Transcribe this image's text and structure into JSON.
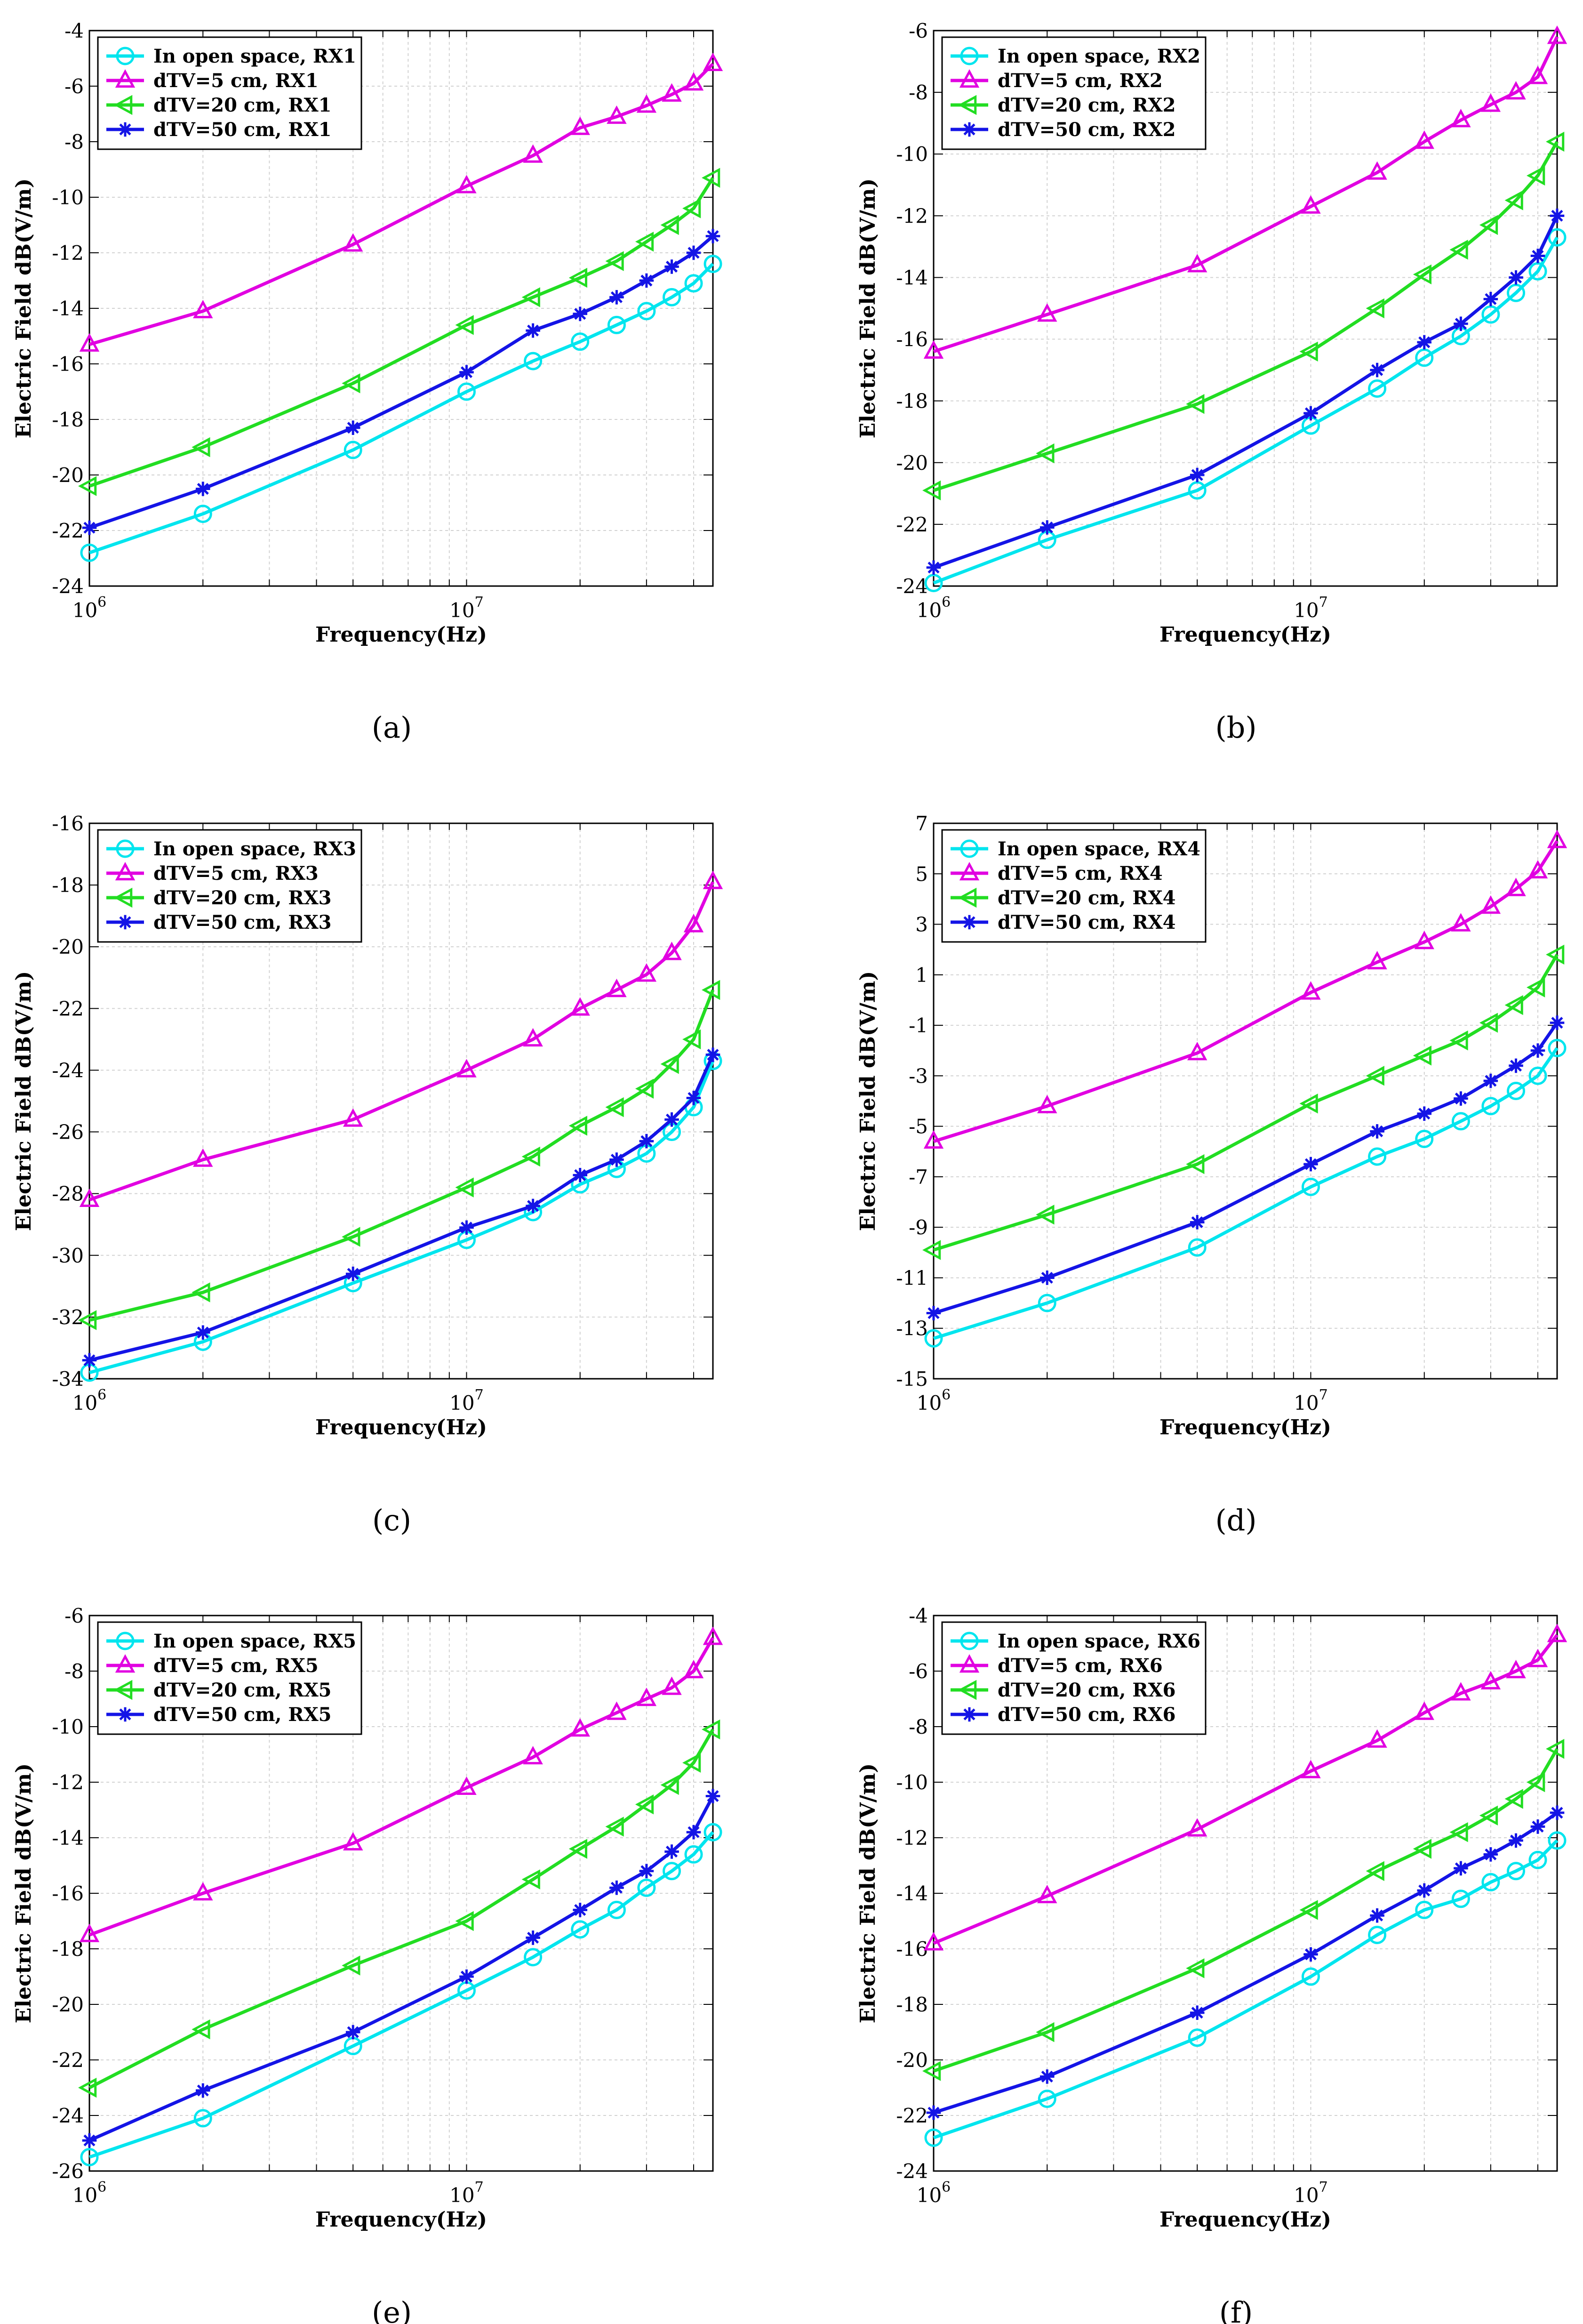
{
  "figure": {
    "x_axis_label": "Frequency(Hz)",
    "y_axis_label": "Electric Field dB(V/m)",
    "x_tick_labels": [
      "10^6",
      "10^7"
    ],
    "series_colors": [
      "#00e5ee",
      "#e100e1",
      "#22dd22",
      "#1414e6"
    ],
    "markers": [
      "circle-icon",
      "triangle-up-icon",
      "triangle-left-icon",
      "asterisk-icon"
    ]
  },
  "chart_data": [
    {
      "panel": "(a)",
      "panel_letter": "a",
      "type": "line",
      "x_scale": "log",
      "xlabel": "Frequency(Hz)",
      "ylabel": "Electric Field dB(V/m)",
      "xlim": [
        1000000,
        45000000
      ],
      "ylim": [
        -24,
        -4
      ],
      "yticks": [
        -24,
        -22,
        -20,
        -18,
        -16,
        -14,
        -12,
        -10,
        -8,
        -6,
        -4
      ],
      "grid": true,
      "legend_position": "top-left",
      "x": [
        1000000,
        2000000,
        5000000,
        10000000,
        15000000,
        20000000,
        25000000,
        30000000,
        35000000,
        40000000,
        45000000
      ],
      "series": [
        {
          "name": "In open space, RX1",
          "marker": "circle",
          "values": [
            -22.8,
            -21.4,
            -19.1,
            -17.0,
            -15.9,
            -15.2,
            -14.6,
            -14.1,
            -13.6,
            -13.1,
            -12.4
          ]
        },
        {
          "name": "dTV=5 cm, RX1",
          "marker": "triangle-up",
          "values": [
            -15.3,
            -14.1,
            -11.7,
            -9.6,
            -8.5,
            -7.5,
            -7.1,
            -6.7,
            -6.3,
            -5.9,
            -5.2
          ]
        },
        {
          "name": "dTV=20 cm, RX1",
          "marker": "triangle-left",
          "values": [
            -20.4,
            -19.0,
            -16.7,
            -14.6,
            -13.6,
            -12.9,
            -12.3,
            -11.6,
            -11.0,
            -10.4,
            -9.3
          ]
        },
        {
          "name": "dTV=50 cm, RX1",
          "marker": "asterisk",
          "values": [
            -21.9,
            -20.5,
            -18.3,
            -16.3,
            -14.8,
            -14.2,
            -13.6,
            -13.0,
            -12.5,
            -12.0,
            -11.4
          ]
        }
      ]
    },
    {
      "panel": "(b)",
      "panel_letter": "b",
      "type": "line",
      "x_scale": "log",
      "xlabel": "Frequency(Hz)",
      "ylabel": "Electric Field dB(V/m)",
      "xlim": [
        1000000,
        45000000
      ],
      "ylim": [
        -24,
        -6
      ],
      "yticks": [
        -24,
        -22,
        -20,
        -18,
        -16,
        -14,
        -12,
        -10,
        -8,
        -6
      ],
      "grid": true,
      "legend_position": "top-left",
      "x": [
        1000000,
        2000000,
        5000000,
        10000000,
        15000000,
        20000000,
        25000000,
        30000000,
        35000000,
        40000000,
        45000000
      ],
      "series": [
        {
          "name": "In open space, RX2",
          "marker": "circle",
          "values": [
            -23.9,
            -22.5,
            -20.9,
            -18.8,
            -17.6,
            -16.6,
            -15.9,
            -15.2,
            -14.5,
            -13.8,
            -12.7
          ]
        },
        {
          "name": "dTV=5 cm, RX2",
          "marker": "triangle-up",
          "values": [
            -16.4,
            -15.2,
            -13.6,
            -11.7,
            -10.6,
            -9.6,
            -8.9,
            -8.4,
            -8.0,
            -7.5,
            -6.2
          ]
        },
        {
          "name": "dTV=20 cm, RX2",
          "marker": "triangle-left",
          "values": [
            -20.9,
            -19.7,
            -18.1,
            -16.4,
            -15.0,
            -13.9,
            -13.1,
            -12.3,
            -11.5,
            -10.7,
            -9.6
          ]
        },
        {
          "name": "dTV=50 cm, RX2",
          "marker": "asterisk",
          "values": [
            -23.4,
            -22.1,
            -20.4,
            -18.4,
            -17.0,
            -16.1,
            -15.5,
            -14.7,
            -14.0,
            -13.3,
            -12.0
          ]
        }
      ]
    },
    {
      "panel": "(c)",
      "panel_letter": "c",
      "type": "line",
      "x_scale": "log",
      "xlabel": "Frequency(Hz)",
      "ylabel": "Electric Field dB(V/m)",
      "xlim": [
        1000000,
        45000000
      ],
      "ylim": [
        -34,
        -16
      ],
      "yticks": [
        -34,
        -32,
        -30,
        -28,
        -26,
        -24,
        -22,
        -20,
        -18,
        -16
      ],
      "grid": true,
      "legend_position": "top-left",
      "x": [
        1000000,
        2000000,
        5000000,
        10000000,
        15000000,
        20000000,
        25000000,
        30000000,
        35000000,
        40000000,
        45000000
      ],
      "series": [
        {
          "name": "In open space, RX3",
          "marker": "circle",
          "values": [
            -33.8,
            -32.8,
            -30.9,
            -29.5,
            -28.6,
            -27.7,
            -27.2,
            -26.7,
            -26.0,
            -25.2,
            -23.7
          ]
        },
        {
          "name": "dTV=5 cm, RX3",
          "marker": "triangle-up",
          "values": [
            -28.2,
            -26.9,
            -25.6,
            -24.0,
            -23.0,
            -22.0,
            -21.4,
            -20.9,
            -20.2,
            -19.3,
            -17.9
          ]
        },
        {
          "name": "dTV=20 cm, RX3",
          "marker": "triangle-left",
          "values": [
            -32.1,
            -31.2,
            -29.4,
            -27.8,
            -26.8,
            -25.8,
            -25.2,
            -24.6,
            -23.8,
            -23.0,
            -21.4
          ]
        },
        {
          "name": "dTV=50 cm, RX3",
          "marker": "asterisk",
          "values": [
            -33.4,
            -32.5,
            -30.6,
            -29.1,
            -28.4,
            -27.4,
            -26.9,
            -26.3,
            -25.6,
            -24.9,
            -23.5
          ]
        }
      ]
    },
    {
      "panel": "(d)",
      "panel_letter": "d",
      "type": "line",
      "x_scale": "log",
      "xlabel": "Frequency(Hz)",
      "ylabel": "Electric Field dB(V/m)",
      "xlim": [
        1000000,
        45000000
      ],
      "ylim": [
        -15,
        7
      ],
      "yticks": [
        -15,
        -13,
        -11,
        -9,
        -7,
        -5,
        -3,
        -1,
        1,
        3,
        5,
        7
      ],
      "grid": true,
      "legend_position": "top-left",
      "x": [
        1000000,
        2000000,
        5000000,
        10000000,
        15000000,
        20000000,
        25000000,
        30000000,
        35000000,
        40000000,
        45000000
      ],
      "series": [
        {
          "name": "In open space, RX4",
          "marker": "circle",
          "values": [
            -13.4,
            -12.0,
            -9.8,
            -7.4,
            -6.2,
            -5.5,
            -4.8,
            -4.2,
            -3.6,
            -3.0,
            -1.9
          ]
        },
        {
          "name": "dTV=5 cm, RX4",
          "marker": "triangle-up",
          "values": [
            -5.6,
            -4.2,
            -2.1,
            0.3,
            1.5,
            2.3,
            3.0,
            3.7,
            4.4,
            5.1,
            6.3
          ]
        },
        {
          "name": "dTV=20 cm, RX4",
          "marker": "triangle-left",
          "values": [
            -9.9,
            -8.5,
            -6.5,
            -4.1,
            -3.0,
            -2.2,
            -1.6,
            -0.9,
            -0.2,
            0.5,
            1.8
          ]
        },
        {
          "name": "dTV=50 cm, RX4",
          "marker": "asterisk",
          "values": [
            -12.4,
            -11.0,
            -8.8,
            -6.5,
            -5.2,
            -4.5,
            -3.9,
            -3.2,
            -2.6,
            -2.0,
            -0.9
          ]
        }
      ]
    },
    {
      "panel": "(e)",
      "panel_letter": "e",
      "type": "line",
      "x_scale": "log",
      "xlabel": "Frequency(Hz)",
      "ylabel": "Electric Field dB(V/m)",
      "xlim": [
        1000000,
        45000000
      ],
      "ylim": [
        -26,
        -6
      ],
      "yticks": [
        -26,
        -24,
        -22,
        -20,
        -18,
        -16,
        -14,
        -12,
        -10,
        -8,
        -6
      ],
      "grid": true,
      "legend_position": "top-left",
      "x": [
        1000000,
        2000000,
        5000000,
        10000000,
        15000000,
        20000000,
        25000000,
        30000000,
        35000000,
        40000000,
        45000000
      ],
      "series": [
        {
          "name": "In open space, RX5",
          "marker": "circle",
          "values": [
            -25.5,
            -24.1,
            -21.5,
            -19.5,
            -18.3,
            -17.3,
            -16.6,
            -15.8,
            -15.2,
            -14.6,
            -13.8
          ]
        },
        {
          "name": "dTV=5 cm, RX5",
          "marker": "triangle-up",
          "values": [
            -17.5,
            -16.0,
            -14.2,
            -12.2,
            -11.1,
            -10.1,
            -9.5,
            -9.0,
            -8.6,
            -8.0,
            -6.8
          ]
        },
        {
          "name": "dTV=20 cm, RX5",
          "marker": "triangle-left",
          "values": [
            -23.0,
            -20.9,
            -18.6,
            -17.0,
            -15.5,
            -14.4,
            -13.6,
            -12.8,
            -12.1,
            -11.3,
            -10.1
          ]
        },
        {
          "name": "dTV=50 cm, RX5",
          "marker": "asterisk",
          "values": [
            -24.9,
            -23.1,
            -21.0,
            -19.0,
            -17.6,
            -16.6,
            -15.8,
            -15.2,
            -14.5,
            -13.8,
            -12.5
          ]
        }
      ]
    },
    {
      "panel": "(f)",
      "panel_letter": "f",
      "type": "line",
      "x_scale": "log",
      "xlabel": "Frequency(Hz)",
      "ylabel": "Electric Field dB(V/m)",
      "xlim": [
        1000000,
        45000000
      ],
      "ylim": [
        -24,
        -4
      ],
      "yticks": [
        -24,
        -22,
        -20,
        -18,
        -16,
        -14,
        -12,
        -10,
        -8,
        -6,
        -4
      ],
      "grid": true,
      "legend_position": "top-left",
      "x": [
        1000000,
        2000000,
        5000000,
        10000000,
        15000000,
        20000000,
        25000000,
        30000000,
        35000000,
        40000000,
        45000000
      ],
      "series": [
        {
          "name": "In open space, RX6",
          "marker": "circle",
          "values": [
            -22.8,
            -21.4,
            -19.2,
            -17.0,
            -15.5,
            -14.6,
            -14.2,
            -13.6,
            -13.2,
            -12.8,
            -12.1
          ]
        },
        {
          "name": "dTV=5 cm, RX6",
          "marker": "triangle-up",
          "values": [
            -15.8,
            -14.1,
            -11.7,
            -9.6,
            -8.5,
            -7.5,
            -6.8,
            -6.4,
            -6.0,
            -5.6,
            -4.7
          ]
        },
        {
          "name": "dTV=20 cm, RX6",
          "marker": "triangle-left",
          "values": [
            -20.4,
            -19.0,
            -16.7,
            -14.6,
            -13.2,
            -12.4,
            -11.8,
            -11.2,
            -10.6,
            -10.0,
            -8.8
          ]
        },
        {
          "name": "dTV=50 cm, RX6",
          "marker": "asterisk",
          "values": [
            -21.9,
            -20.6,
            -18.3,
            -16.2,
            -14.8,
            -13.9,
            -13.1,
            -12.6,
            -12.1,
            -11.6,
            -11.1
          ]
        }
      ]
    }
  ]
}
